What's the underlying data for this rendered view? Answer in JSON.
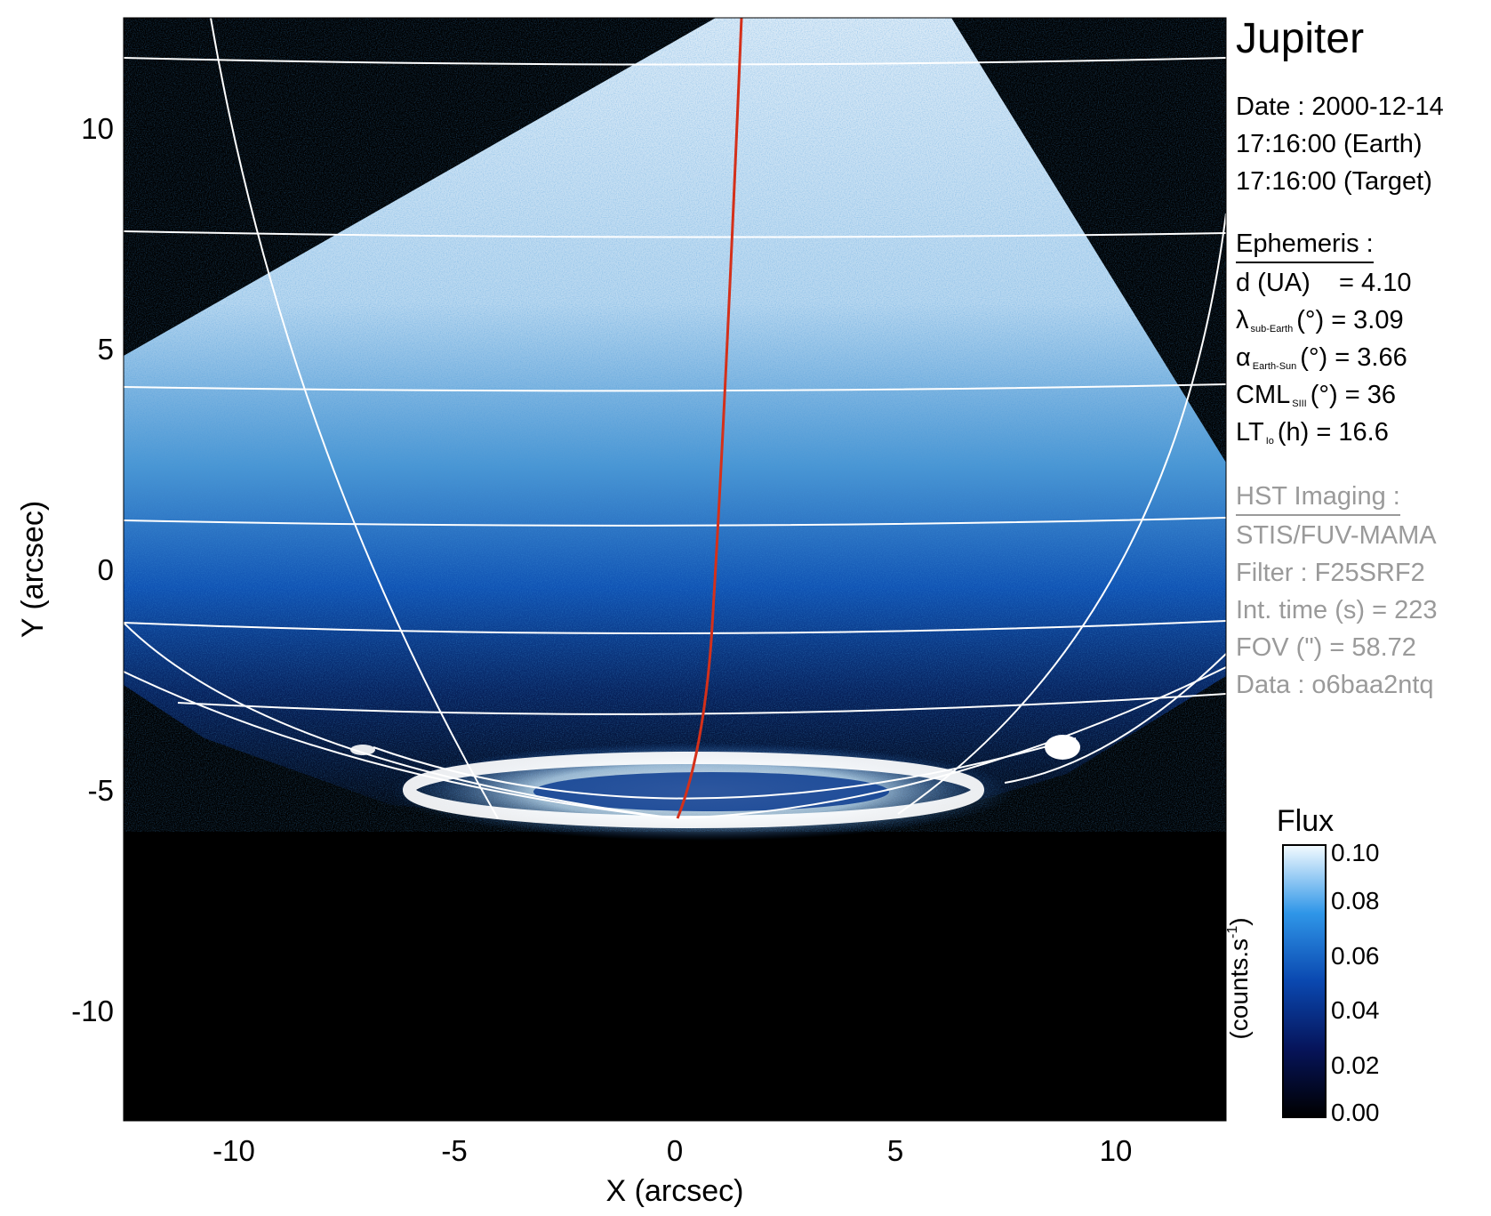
{
  "figure": {
    "target": "Jupiter",
    "x_axis": {
      "label": "X (arcsec)",
      "ticks": [
        "-10",
        "-5",
        "0",
        "5",
        "10"
      ],
      "range": [
        -12.5,
        12.5
      ]
    },
    "y_axis": {
      "label": "Y (arcsec)",
      "ticks": [
        "10",
        "5",
        "0",
        "-5",
        "-10"
      ],
      "range": [
        -12.5,
        12.5
      ]
    }
  },
  "info": {
    "date_line": "Date : 2000-12-14",
    "time_earth": "17:16:00 (Earth)",
    "time_target": "17:16:00 (Target)",
    "ephemeris_heading": "Ephemeris :",
    "ephemeris": {
      "d": {
        "label": "d (UA)",
        "value": "= 4.10"
      },
      "lambda": {
        "symbol": "λ",
        "sub": "sub-Earth",
        "unit": "(°)",
        "value": "= 3.09"
      },
      "alpha": {
        "symbol": "α",
        "sub": "Earth-Sun",
        "unit": "(°)",
        "value": "= 3.66"
      },
      "cml": {
        "symbol": "CML",
        "sub": "SIII",
        "unit": "(°)",
        "value": "= 36"
      },
      "lt": {
        "symbol": "LT",
        "sub": "Io",
        "unit": "(h)",
        "value": "= 16.6"
      }
    },
    "hst_heading": "HST Imaging :",
    "instrument": "STIS/FUV-MAMA",
    "filter": "Filter : F25SRF2",
    "int_time": "Int. time (s) = 223",
    "fov": "FOV (\") = 58.72",
    "data_id": "Data : o6baa2ntq"
  },
  "colorbar": {
    "title": "Flux",
    "label": "(counts.s",
    "label_sup": "-1",
    "label_close": ")",
    "ticks": [
      "0.10",
      "0.08",
      "0.06",
      "0.04",
      "0.02",
      "0.00"
    ],
    "range": [
      0.0,
      0.1
    ]
  },
  "colors": {
    "background": "#000000",
    "grid": "#ffffff",
    "red_line": "#d4301a",
    "cmap_low": "#000000",
    "cmap_mid": "#0a62c4",
    "cmap_high": "#ffffff"
  }
}
